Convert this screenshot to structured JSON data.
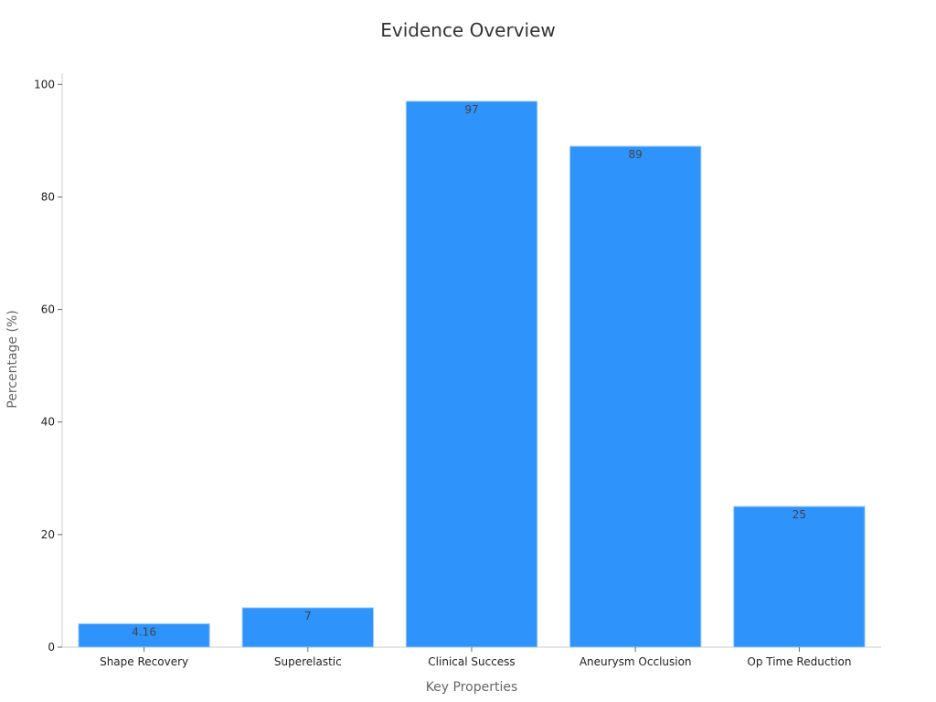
{
  "chart_data": {
    "type": "bar",
    "title": "Evidence Overview",
    "xlabel": "Key Properties",
    "ylabel": "Percentage (%)",
    "categories": [
      "Shape Recovery",
      "Superelastic",
      "Clinical Success",
      "Aneurysm Occlusion",
      "Op Time Reduction"
    ],
    "values": [
      4.16,
      7,
      97,
      89,
      25
    ],
    "value_labels": [
      "4.16",
      "7",
      "97",
      "89",
      "25"
    ],
    "ylim": [
      0,
      102
    ],
    "yticks": [
      0,
      20,
      40,
      60,
      80,
      100
    ],
    "ytick_labels": [
      "0",
      "20",
      "40",
      "60",
      "80",
      "100"
    ],
    "grid": false,
    "bar_color": "#2e93fa",
    "bar_edge_color": "#9ecbf7"
  }
}
